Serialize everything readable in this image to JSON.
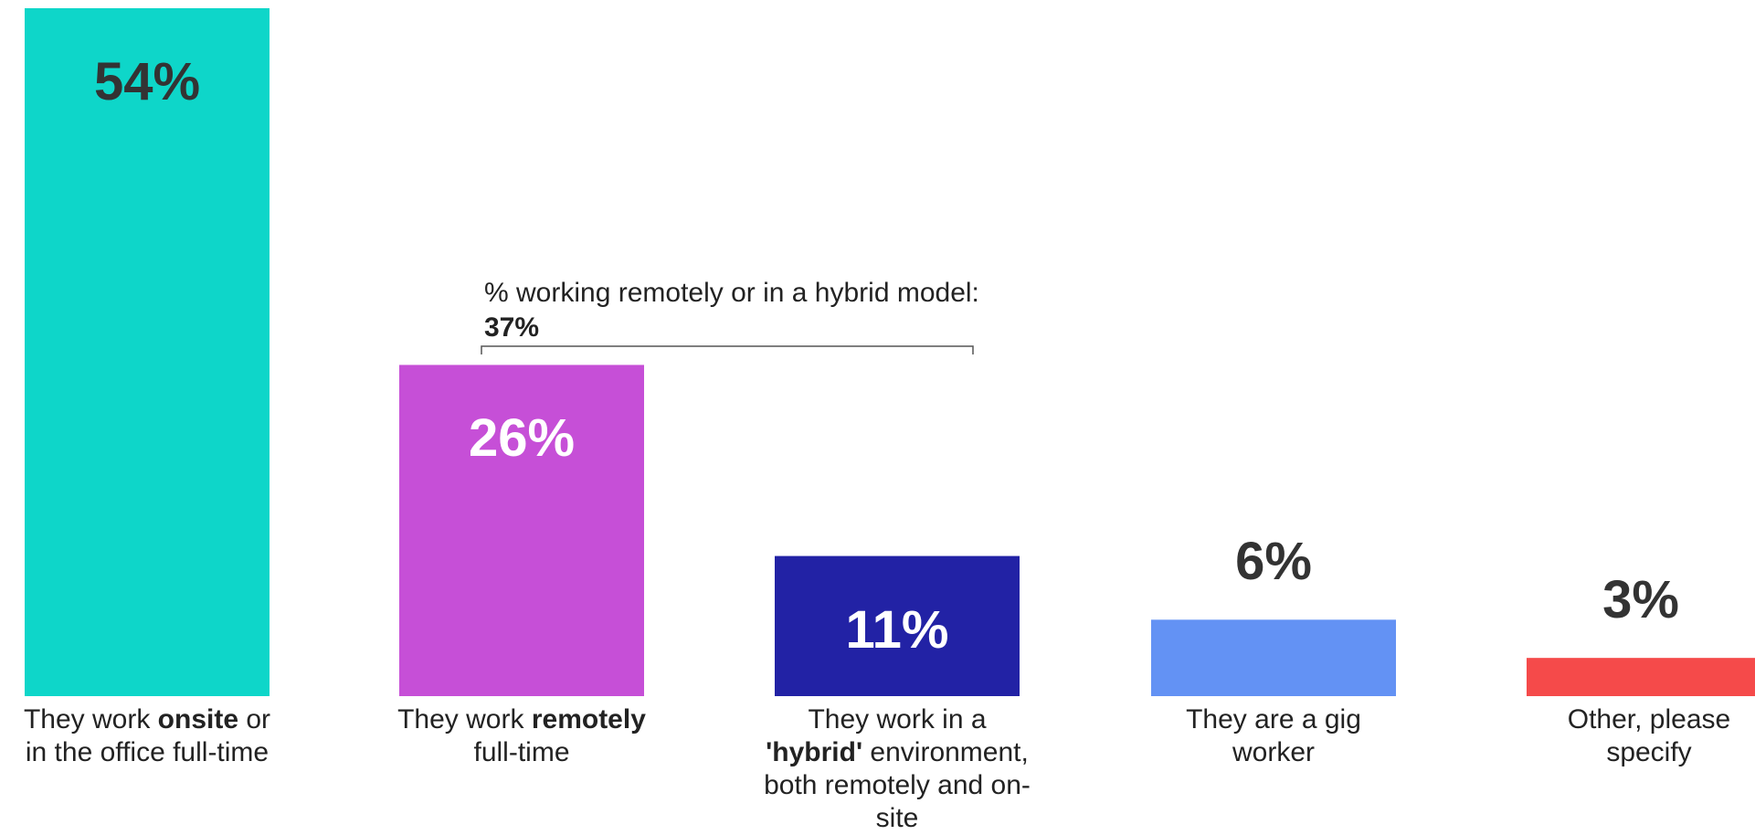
{
  "chart_data": {
    "type": "bar",
    "categories": [
      {
        "pre": "They work ",
        "bold": "onsite",
        "post": " or in the office full-time"
      },
      {
        "pre": "They work ",
        "bold": "remotely",
        "post": " full-time"
      },
      {
        "pre": "They work in a ",
        "bold": "'hybrid'",
        "post": " environment, both remotely and on-site"
      },
      {
        "pre": "They are a gig worker",
        "bold": "",
        "post": ""
      },
      {
        "pre": "Other, please specify",
        "bold": "",
        "post": ""
      }
    ],
    "values": [
      54,
      26,
      11,
      6,
      3
    ],
    "value_labels": [
      "54%",
      "26%",
      "11%",
      "6%",
      "3%"
    ],
    "colors": [
      "#0ed6c9",
      "#c64fd7",
      "#2222a5",
      "#6392f4",
      "#f54a4a"
    ],
    "label_inside": [
      true,
      true,
      true,
      false,
      false
    ],
    "label_colors": [
      "#333333",
      "#ffffff",
      "#ffffff",
      "#333333",
      "#333333"
    ],
    "ylim": [
      0,
      54
    ],
    "annotation": {
      "text": "% working remotely or in a hybrid model: ",
      "value": "37%"
    }
  }
}
